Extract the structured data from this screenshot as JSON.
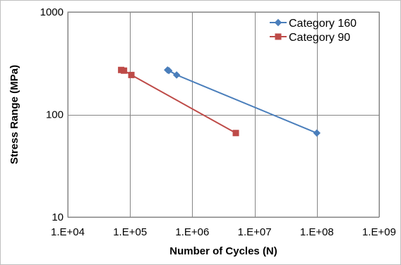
{
  "chart_data": {
    "type": "line",
    "xlabel": "Number of Cycles (N)",
    "ylabel": "Stress Range (MPa)",
    "x_scale": "log",
    "y_scale": "log",
    "xlim": [
      10000,
      1000000000
    ],
    "ylim": [
      10,
      1000
    ],
    "x_ticks": [
      10000,
      100000,
      1000000,
      10000000,
      100000000,
      1000000000
    ],
    "x_tick_labels": [
      "1.E+04",
      "1.E+05",
      "1.E+06",
      "1.E+07",
      "1.E+08",
      "1.E+09"
    ],
    "y_ticks": [
      10,
      100,
      1000
    ],
    "y_tick_labels": [
      "10",
      "100",
      "1000"
    ],
    "grid": true,
    "legend_position": "top-right",
    "series": [
      {
        "name": "Category 160",
        "color": "#4A7EBB",
        "marker": "diamond",
        "x": [
          400000,
          420000,
          560000,
          100000000
        ],
        "y": [
          272,
          268,
          243,
          66
        ]
      },
      {
        "name": "Category 90",
        "color": "#BE4B48",
        "marker": "square",
        "x": [
          72000,
          80000,
          105000,
          5000000
        ],
        "y": [
          272,
          268,
          243,
          66
        ]
      }
    ]
  }
}
